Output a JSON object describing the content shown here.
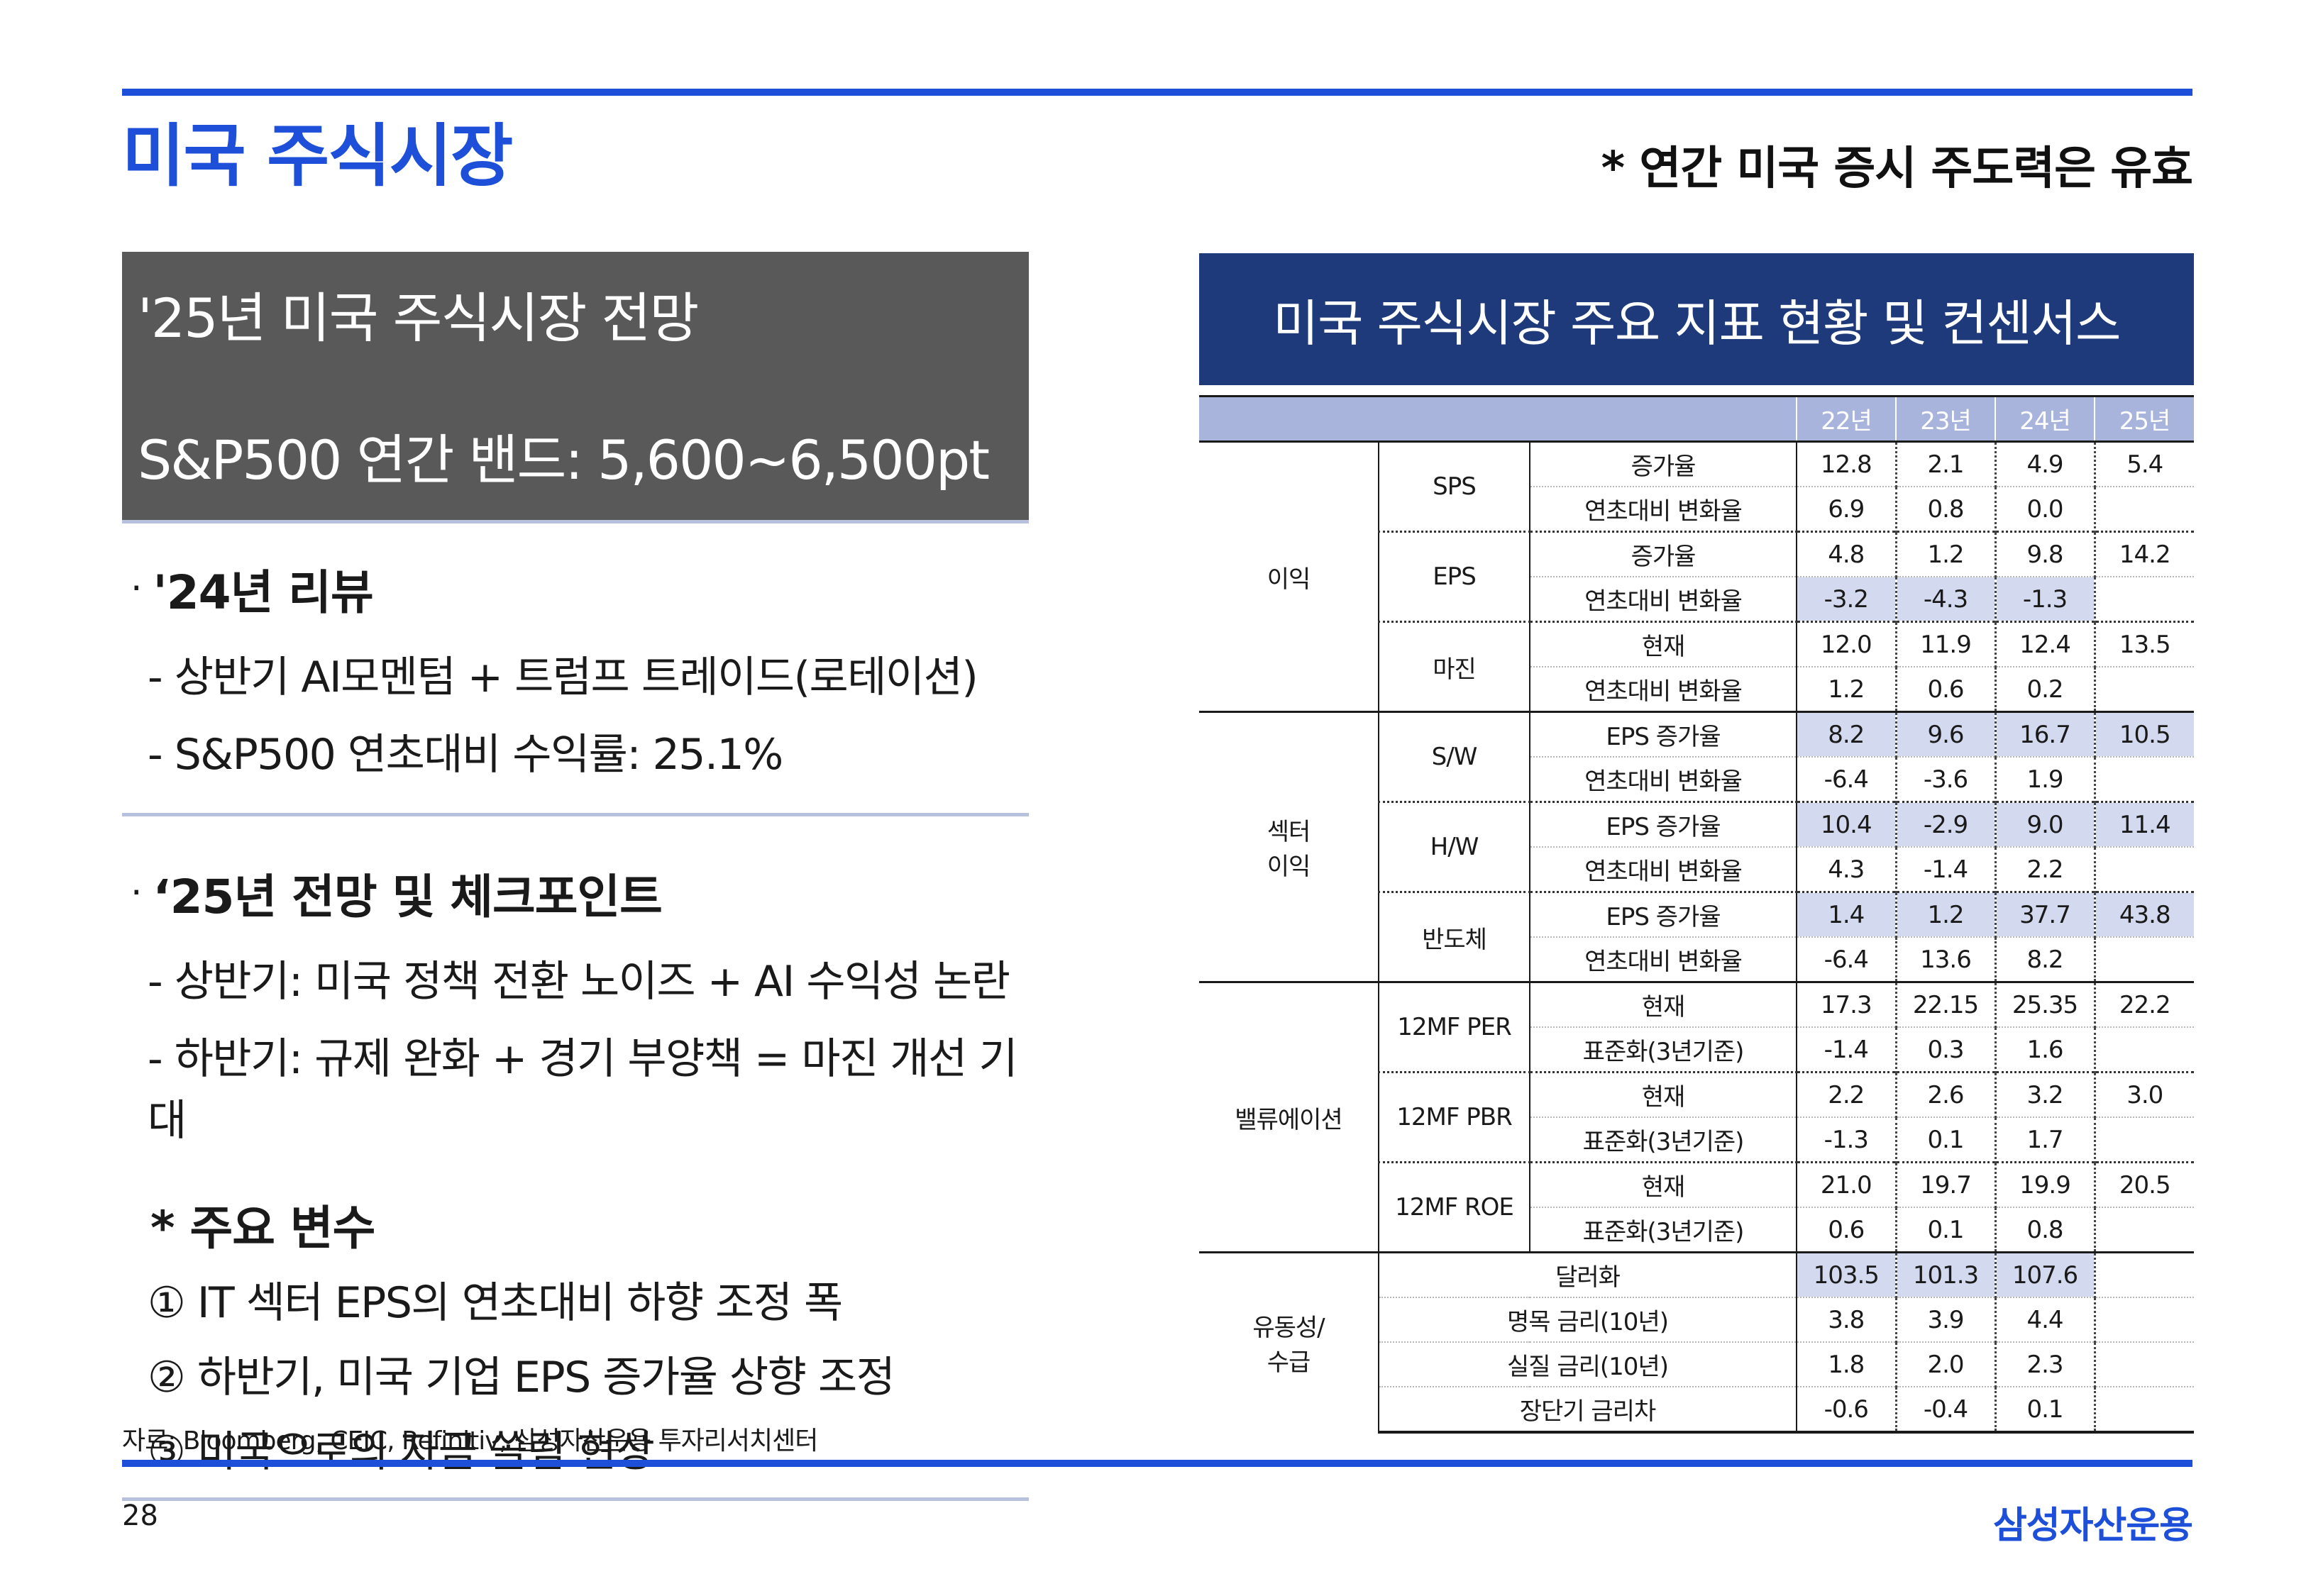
{
  "page": {
    "title": "미국 주식시장",
    "headline": "* 연간 미국 증시 주도력은 유효",
    "page_number": "28",
    "brand": "삼성자산운용",
    "source": "자료: Bloomberg, CEIC, Refinitiv, 삼성자산운용 투자리서치센터"
  },
  "outlook": {
    "title": "'25년 미국 주식시장 전망",
    "band": "S&P500 연간 밴드: 5,600~6,500pt"
  },
  "review": {
    "bullet": "·",
    "heading": "'24년 리뷰",
    "lines": [
      "- 상반기 AI모멘텀 + 트럼프 트레이드(로테이션)",
      "- S&P500 연초대비 수익률: 25.1%"
    ]
  },
  "checkpoints": {
    "bullet": "·",
    "heading": "‘25년 전망 및 체크포인트",
    "lines": [
      "- 상반기: 미국 정책 전환 노이즈 + AI 수익성 논란",
      "- 하반기: 규제 완화 + 경기 부양책 = 마진 개선 기대"
    ]
  },
  "variables": {
    "heading": "* 주요 변수",
    "lines": [
      "① IT 섹터 EPS의 연초대비 하향 조정 폭",
      "② 하반기, 미국 기업 EPS 증가율 상향 조정",
      "③ 미국으로의 자금 쏠림 현상"
    ]
  },
  "table": {
    "title": "미국 주식시장 주요 지표 현황 및 컨센서스",
    "years": [
      "22년",
      "23년",
      "24년",
      "25년"
    ],
    "groups": [
      {
        "name": "이익",
        "subs": [
          {
            "name": "SPS",
            "rows": [
              {
                "metric": "증가율",
                "cells": [
                  {
                    "v": "12.8"
                  },
                  {
                    "v": "2.1"
                  },
                  {
                    "v": "4.9"
                  },
                  {
                    "v": "5.4"
                  }
                ]
              },
              {
                "metric": "연초대비 변화율",
                "cells": [
                  {
                    "v": "6.9"
                  },
                  {
                    "v": "0.8"
                  },
                  {
                    "v": "0.0"
                  },
                  {
                    "v": ""
                  }
                ]
              }
            ]
          },
          {
            "name": "EPS",
            "rows": [
              {
                "metric": "증가율",
                "cells": [
                  {
                    "v": "4.8"
                  },
                  {
                    "v": "1.2"
                  },
                  {
                    "v": "9.8"
                  },
                  {
                    "v": "14.2"
                  }
                ]
              },
              {
                "metric": "연초대비 변화율",
                "cells": [
                  {
                    "v": "-3.2",
                    "hl": true
                  },
                  {
                    "v": "-4.3",
                    "hl": true
                  },
                  {
                    "v": "-1.3",
                    "hl": true
                  },
                  {
                    "v": ""
                  }
                ]
              }
            ]
          },
          {
            "name": "마진",
            "rows": [
              {
                "metric": "현재",
                "cells": [
                  {
                    "v": "12.0"
                  },
                  {
                    "v": "11.9"
                  },
                  {
                    "v": "12.4"
                  },
                  {
                    "v": "13.5"
                  }
                ]
              },
              {
                "metric": "연초대비 변화율",
                "cells": [
                  {
                    "v": "1.2"
                  },
                  {
                    "v": "0.6"
                  },
                  {
                    "v": "0.2"
                  },
                  {
                    "v": ""
                  }
                ]
              }
            ]
          }
        ]
      },
      {
        "name": "섹터\n이익",
        "subs": [
          {
            "name": "S/W",
            "rows": [
              {
                "metric": "EPS 증가율",
                "cells": [
                  {
                    "v": "8.2",
                    "hl": true
                  },
                  {
                    "v": "9.6",
                    "hl": true
                  },
                  {
                    "v": "16.7",
                    "hl": true
                  },
                  {
                    "v": "10.5",
                    "hl": true
                  }
                ]
              },
              {
                "metric": "연초대비 변화율",
                "cells": [
                  {
                    "v": "-6.4"
                  },
                  {
                    "v": "-3.6"
                  },
                  {
                    "v": "1.9"
                  },
                  {
                    "v": ""
                  }
                ]
              }
            ]
          },
          {
            "name": "H/W",
            "rows": [
              {
                "metric": "EPS 증가율",
                "cells": [
                  {
                    "v": "10.4",
                    "hl": true
                  },
                  {
                    "v": "-2.9",
                    "hl": true
                  },
                  {
                    "v": "9.0",
                    "hl": true
                  },
                  {
                    "v": "11.4",
                    "hl": true
                  }
                ]
              },
              {
                "metric": "연초대비 변화율",
                "cells": [
                  {
                    "v": "4.3"
                  },
                  {
                    "v": "-1.4"
                  },
                  {
                    "v": "2.2"
                  },
                  {
                    "v": ""
                  }
                ]
              }
            ]
          },
          {
            "name": "반도체",
            "rows": [
              {
                "metric": "EPS 증가율",
                "cells": [
                  {
                    "v": "1.4",
                    "hl": true
                  },
                  {
                    "v": "1.2",
                    "hl": true
                  },
                  {
                    "v": "37.7",
                    "hl": true
                  },
                  {
                    "v": "43.8",
                    "hl": true
                  }
                ]
              },
              {
                "metric": "연초대비 변화율",
                "cells": [
                  {
                    "v": "-6.4"
                  },
                  {
                    "v": "13.6"
                  },
                  {
                    "v": "8.2"
                  },
                  {
                    "v": ""
                  }
                ]
              }
            ]
          }
        ]
      },
      {
        "name": "밸류에이션",
        "subs": [
          {
            "name": "12MF PER",
            "rows": [
              {
                "metric": "현재",
                "cells": [
                  {
                    "v": "17.3"
                  },
                  {
                    "v": "22.15"
                  },
                  {
                    "v": "25.35"
                  },
                  {
                    "v": "22.2"
                  }
                ]
              },
              {
                "metric": "표준화(3년기준)",
                "cells": [
                  {
                    "v": "-1.4"
                  },
                  {
                    "v": "0.3"
                  },
                  {
                    "v": "1.6"
                  },
                  {
                    "v": ""
                  }
                ]
              }
            ]
          },
          {
            "name": "12MF PBR",
            "rows": [
              {
                "metric": "현재",
                "cells": [
                  {
                    "v": "2.2"
                  },
                  {
                    "v": "2.6"
                  },
                  {
                    "v": "3.2"
                  },
                  {
                    "v": "3.0"
                  }
                ]
              },
              {
                "metric": "표준화(3년기준)",
                "cells": [
                  {
                    "v": "-1.3"
                  },
                  {
                    "v": "0.1"
                  },
                  {
                    "v": "1.7"
                  },
                  {
                    "v": ""
                  }
                ]
              }
            ]
          },
          {
            "name": "12MF ROE",
            "rows": [
              {
                "metric": "현재",
                "cells": [
                  {
                    "v": "21.0"
                  },
                  {
                    "v": "19.7"
                  },
                  {
                    "v": "19.9"
                  },
                  {
                    "v": "20.5"
                  }
                ]
              },
              {
                "metric": "표준화(3년기준)",
                "cells": [
                  {
                    "v": "0.6"
                  },
                  {
                    "v": "0.1"
                  },
                  {
                    "v": "0.8"
                  },
                  {
                    "v": ""
                  }
                ]
              }
            ]
          }
        ]
      },
      {
        "name": "유동성/\n수급",
        "subs": [
          {
            "name": "",
            "rows": [
              {
                "metric": "달러화",
                "cells": [
                  {
                    "v": "103.5",
                    "hl": true
                  },
                  {
                    "v": "101.3",
                    "hl": true
                  },
                  {
                    "v": "107.6",
                    "hl": true
                  },
                  {
                    "v": ""
                  }
                ]
              },
              {
                "metric": "명목 금리(10년)",
                "cells": [
                  {
                    "v": "3.8"
                  },
                  {
                    "v": "3.9"
                  },
                  {
                    "v": "4.4"
                  },
                  {
                    "v": ""
                  }
                ]
              },
              {
                "metric": "실질 금리(10년)",
                "cells": [
                  {
                    "v": "1.8"
                  },
                  {
                    "v": "2.0"
                  },
                  {
                    "v": "2.3"
                  },
                  {
                    "v": ""
                  }
                ]
              },
              {
                "metric": "장단기 금리차",
                "cells": [
                  {
                    "v": "-0.6"
                  },
                  {
                    "v": "-0.4"
                  },
                  {
                    "v": "0.1"
                  },
                  {
                    "v": ""
                  }
                ]
              }
            ]
          }
        ]
      }
    ],
    "colors": {
      "title_bg": "#1f3a7a",
      "header_bg": "#a9b4dc",
      "highlight_bg": "#d3d9ee",
      "accent": "#1d4fd8"
    }
  }
}
